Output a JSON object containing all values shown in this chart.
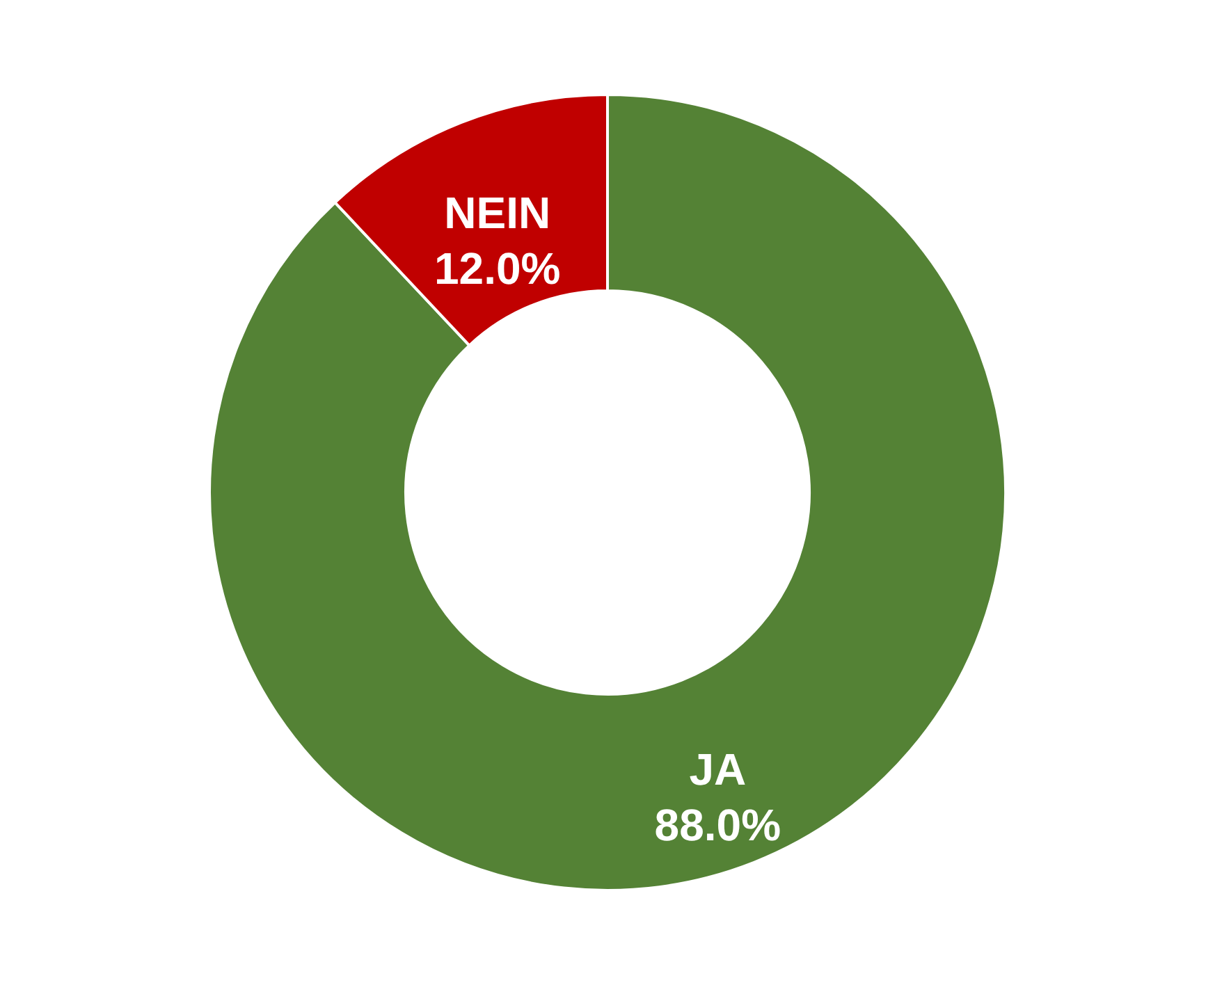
{
  "chart_data": {
    "type": "donut",
    "categories": [
      "JA",
      "NEIN"
    ],
    "values": [
      88.0,
      12.0
    ],
    "colors": [
      "#548235",
      "#c00000"
    ],
    "value_labels": [
      "88.0%",
      "12.0%"
    ]
  }
}
